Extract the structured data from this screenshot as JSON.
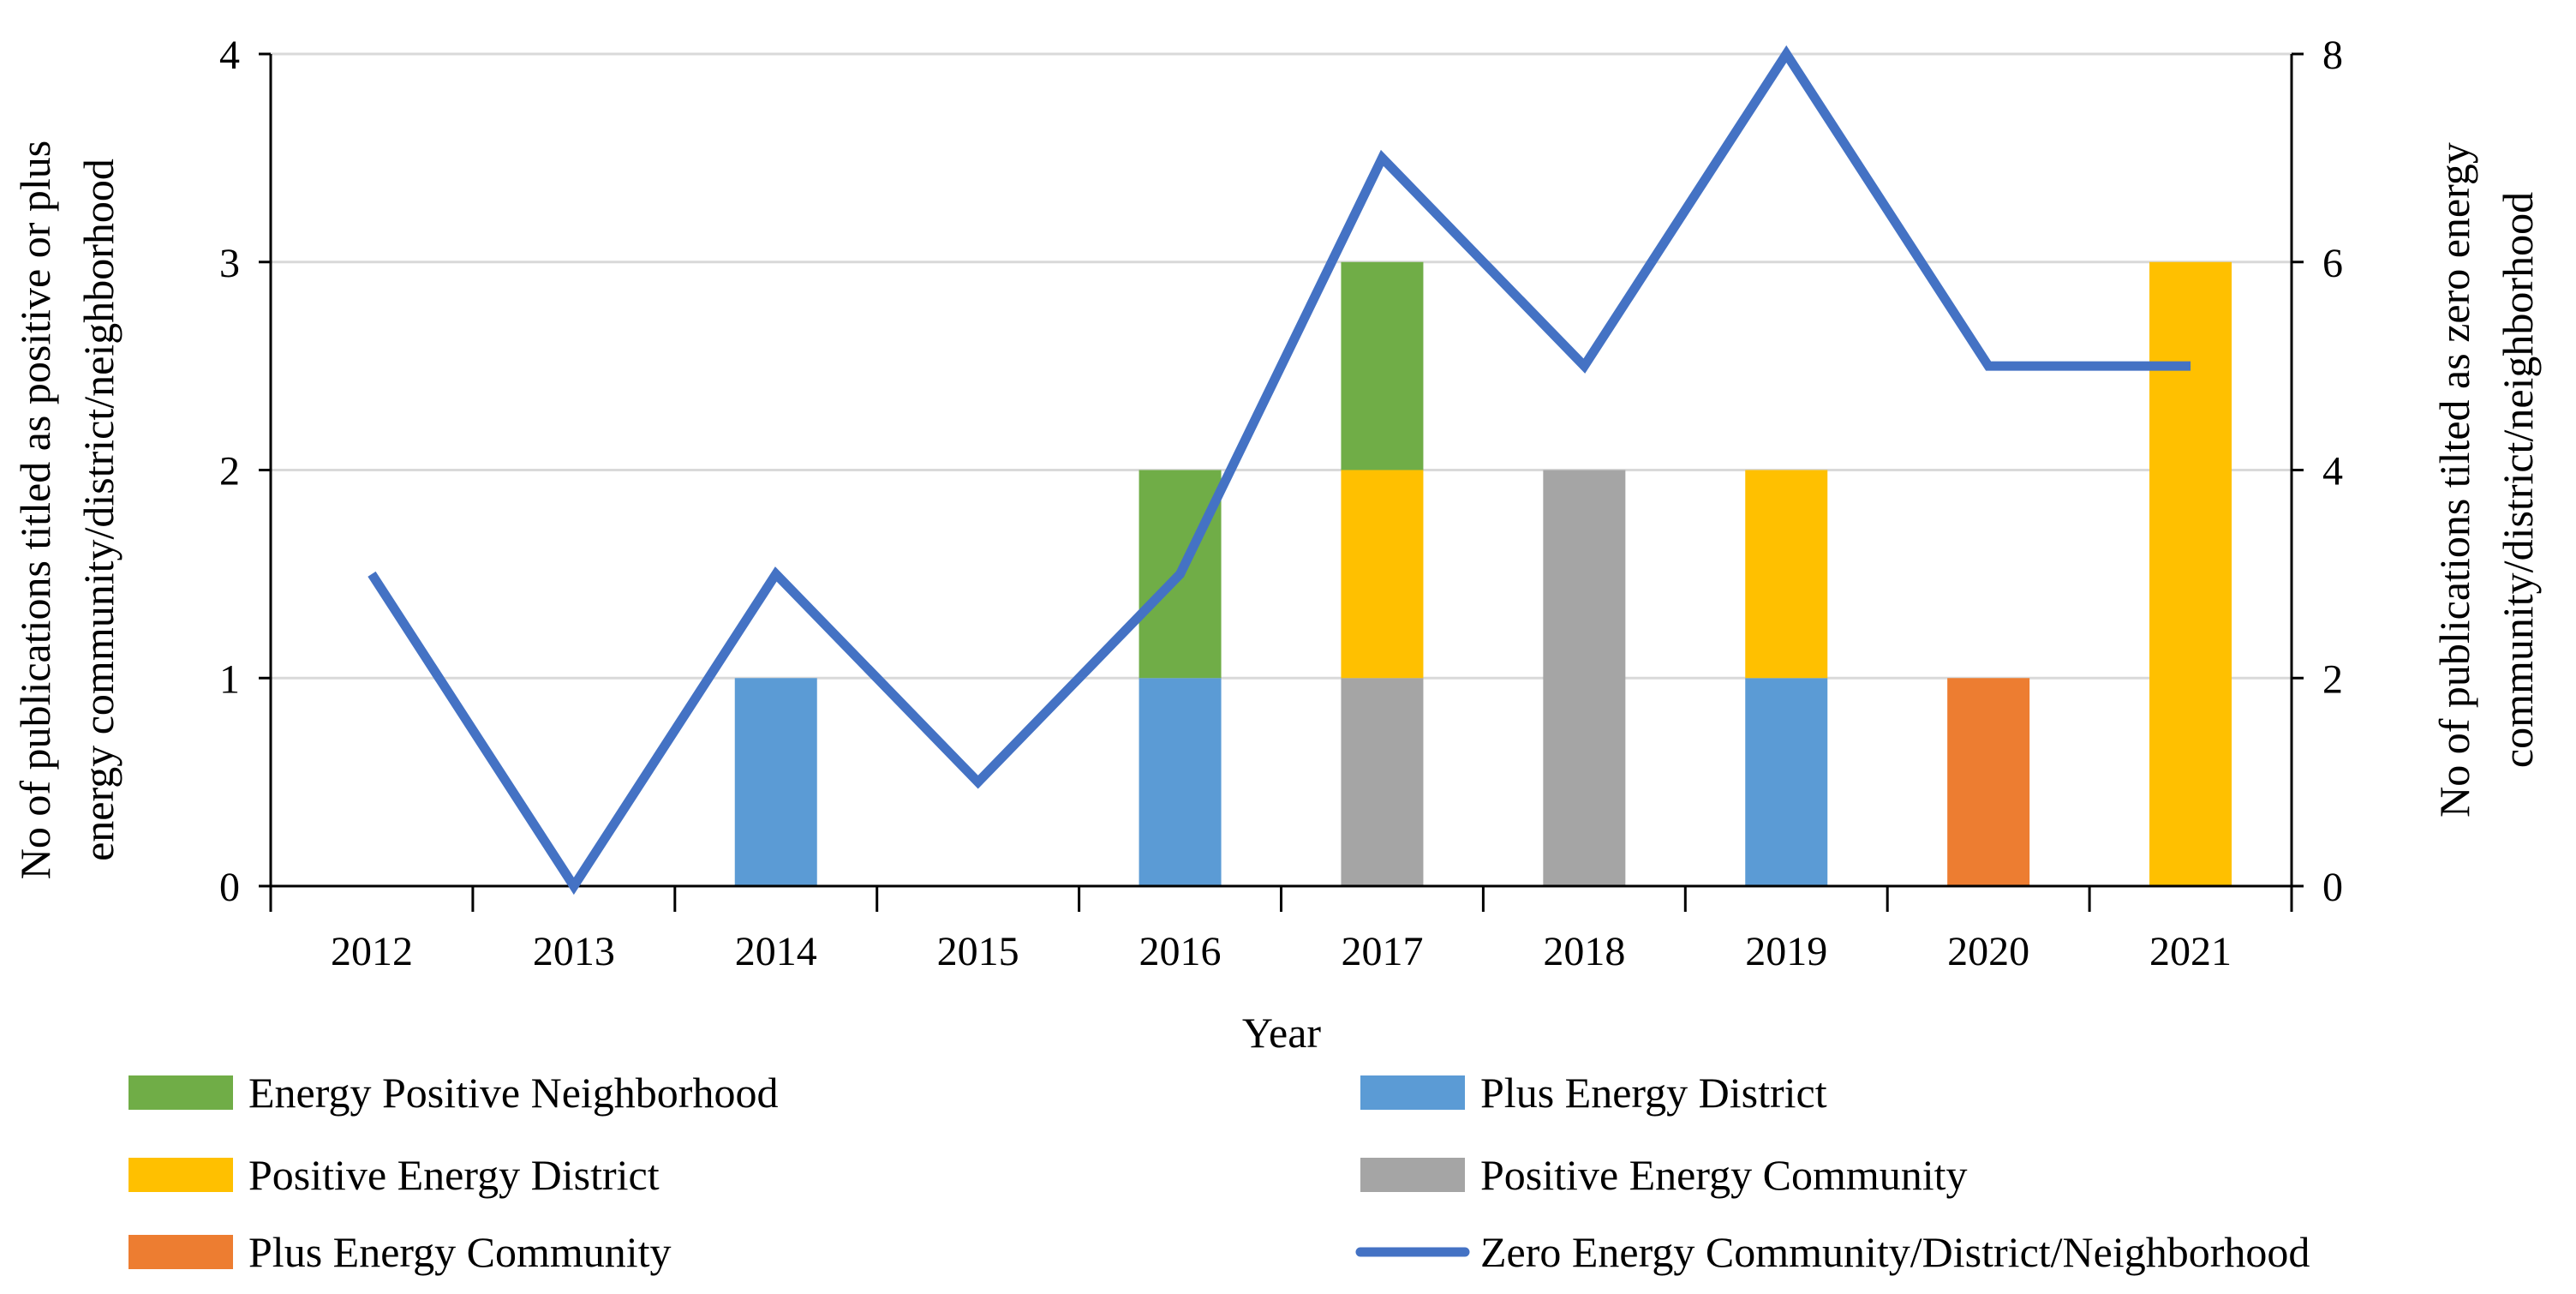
{
  "chart_data": {
    "type": "bar",
    "stacked": true,
    "xlabel": "Year",
    "ylabel": "No of publications titled as positive or plus energy community/district/neighborhood",
    "ylabel_lines": [
      "No of publications titled as positive or plus",
      "energy community/district/neighborhood"
    ],
    "y2label": "No of publications tilted as zero energy community/district/neighborhood",
    "y2label_lines": [
      "No of publications tilted as zero energy",
      "community/district/neighborhood"
    ],
    "categories": [
      "2012",
      "2013",
      "2014",
      "2015",
      "2016",
      "2017",
      "2018",
      "2019",
      "2020",
      "2021"
    ],
    "ylim": [
      0,
      4
    ],
    "yticks": [
      0,
      1,
      2,
      3,
      4
    ],
    "y2lim": [
      0,
      8
    ],
    "y2ticks": [
      0,
      2,
      4,
      6,
      8
    ],
    "grid": true,
    "legend_position": "bottom",
    "series": [
      {
        "name": "Plus Energy District",
        "type": "bar",
        "axis": "left",
        "color": "#5B9BD5",
        "values": [
          0,
          0,
          1,
          0,
          1,
          0,
          0,
          1,
          0,
          0
        ]
      },
      {
        "name": "Positive Energy Community",
        "type": "bar",
        "axis": "left",
        "color": "#A5A5A5",
        "values": [
          0,
          0,
          0,
          0,
          0,
          1,
          2,
          0,
          0,
          0
        ]
      },
      {
        "name": "Positive Energy District",
        "type": "bar",
        "axis": "left",
        "color": "#FFC000",
        "values": [
          0,
          0,
          0,
          0,
          0,
          1,
          0,
          1,
          0,
          3
        ]
      },
      {
        "name": "Plus Energy Community",
        "type": "bar",
        "axis": "left",
        "color": "#ED7D31",
        "values": [
          0,
          0,
          0,
          0,
          0,
          0,
          0,
          0,
          1,
          0
        ]
      },
      {
        "name": "Energy Positive Neighborhood",
        "type": "bar",
        "axis": "left",
        "color": "#70AD47",
        "values": [
          0,
          0,
          0,
          0,
          1,
          1,
          0,
          0,
          0,
          0
        ]
      },
      {
        "name": "Zero Energy Community/District/Neighborhood",
        "type": "line",
        "axis": "right",
        "color": "#4472C4",
        "values": [
          3,
          0,
          3,
          1,
          3,
          7,
          5,
          8,
          5,
          5
        ]
      }
    ],
    "legend_order": [
      "Energy Positive Neighborhood",
      "Plus Energy District",
      "Positive Energy District",
      "Positive Energy Community",
      "Plus Energy Community",
      "Zero Energy Community/District/Neighborhood"
    ]
  }
}
